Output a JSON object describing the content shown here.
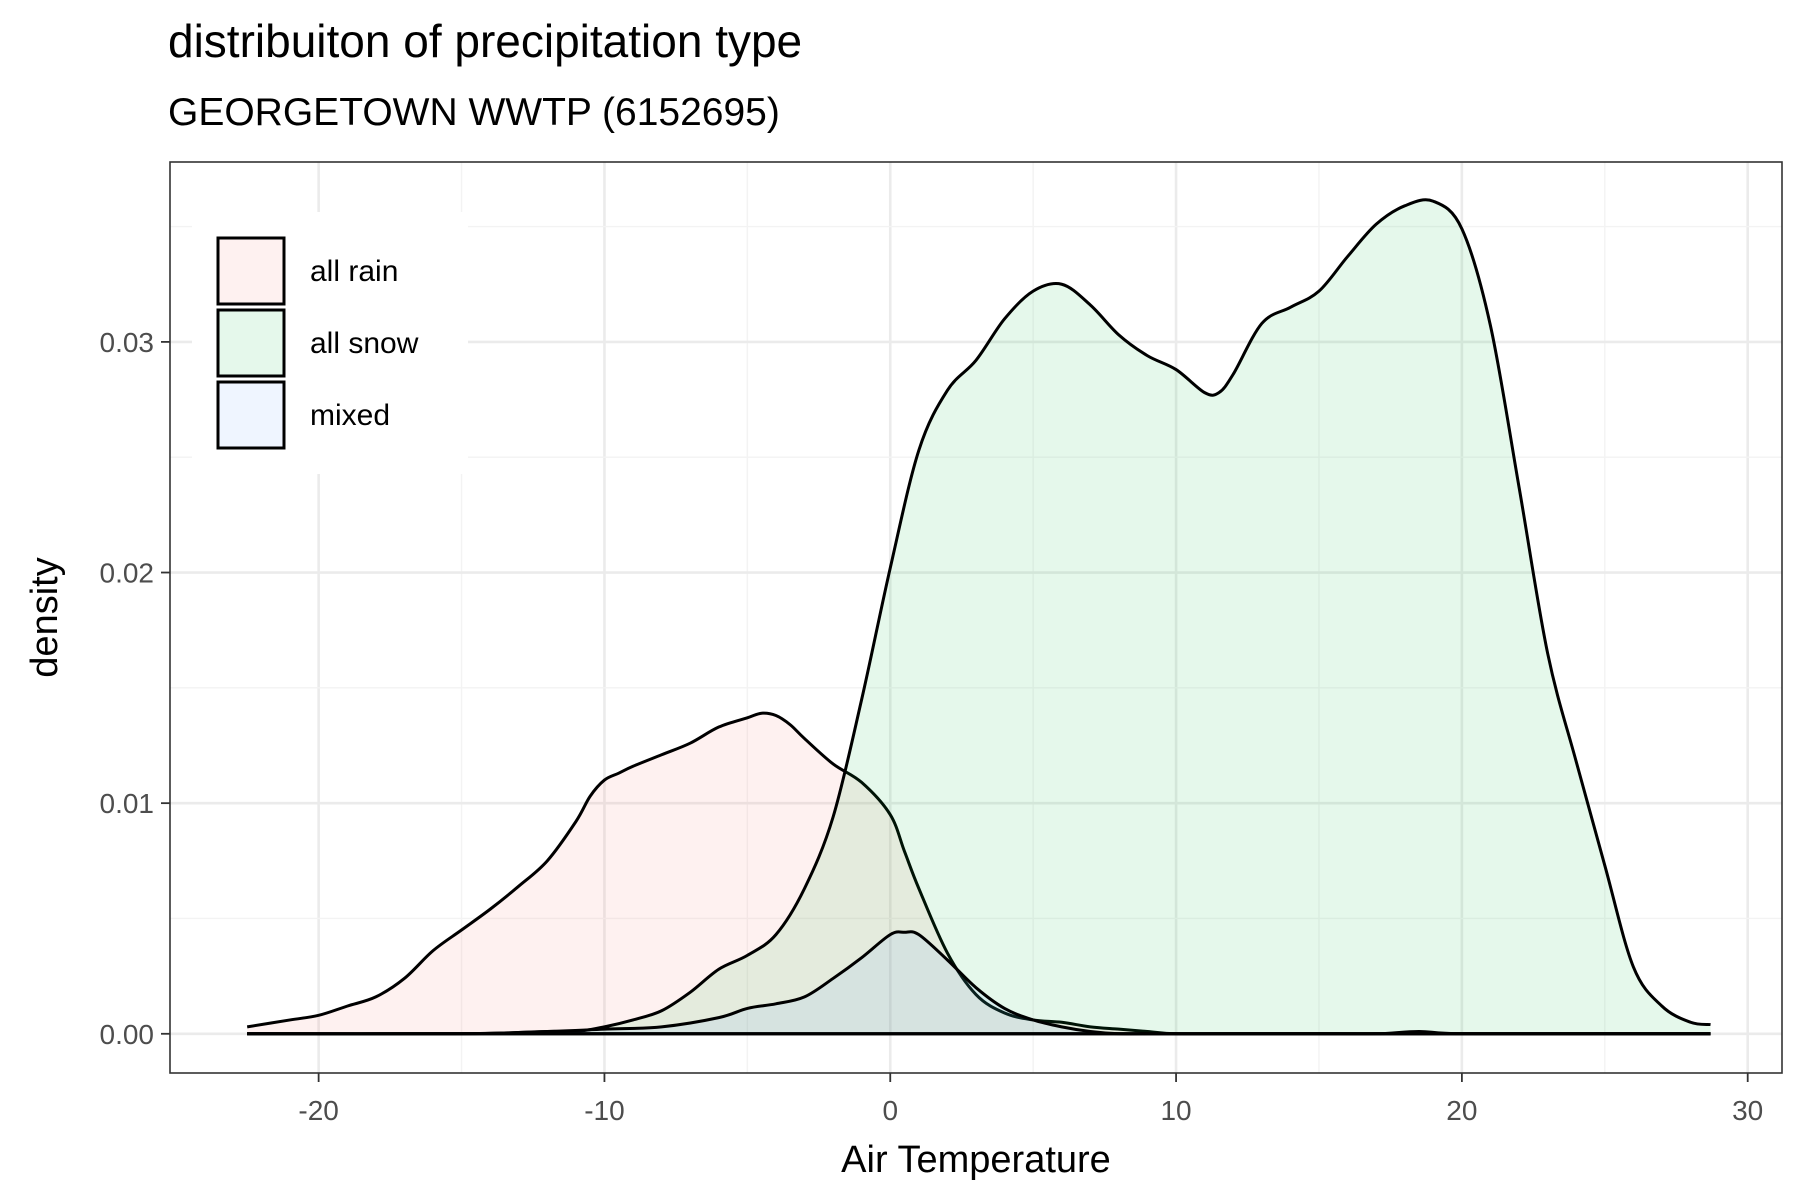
{
  "chart_data": {
    "type": "area",
    "title": "distribuiton of precipitation type",
    "subtitle": "GEORGETOWN WWTP (6152695)",
    "xlabel": "Air Temperature",
    "ylabel": "density",
    "xlim": [
      -25.2,
      31.2
    ],
    "ylim": [
      -0.0017,
      0.0378
    ],
    "x_ticks": [
      -20,
      -10,
      0,
      10,
      20,
      30
    ],
    "x_tick_labels": [
      "-20",
      "-10",
      "0",
      "10",
      "20",
      "30"
    ],
    "y_ticks": [
      0,
      0.01,
      0.02,
      0.03
    ],
    "y_tick_labels": [
      "0.00",
      "0.01",
      "0.02",
      "0.03"
    ],
    "grid": true,
    "legend_position": "top-left",
    "series": [
      {
        "name": "all rain",
        "color": "#F8766D",
        "x": [
          -22.5,
          -21,
          -20,
          -19,
          -18,
          -17,
          -16,
          -15,
          -14,
          -13,
          -12,
          -11,
          -10.5,
          -10,
          -9.5,
          -9,
          -8,
          -7,
          -6,
          -5,
          -4.5,
          -4,
          -3.5,
          -3,
          -2,
          -1,
          0,
          0.5,
          1,
          2,
          3,
          4,
          5,
          6,
          7,
          8,
          9,
          10,
          12,
          15,
          20,
          25,
          28.7
        ],
        "y": [
          0.0003,
          0.0006,
          0.0008,
          0.0012,
          0.0016,
          0.0024,
          0.0036,
          0.0045,
          0.0054,
          0.0064,
          0.0075,
          0.0092,
          0.0103,
          0.011,
          0.0113,
          0.0116,
          0.0121,
          0.0126,
          0.0133,
          0.0137,
          0.0139,
          0.0138,
          0.0134,
          0.0128,
          0.0117,
          0.0109,
          0.0095,
          0.0079,
          0.0063,
          0.0035,
          0.0017,
          0.0009,
          0.0006,
          0.0005,
          0.0003,
          0.0002,
          0.0001,
          0.0,
          0.0,
          0.0,
          0.0,
          0.0,
          0.0
        ]
      },
      {
        "name": "all snow",
        "color": "#00BA38",
        "x": [
          -22.5,
          -15,
          -12,
          -11,
          -10,
          -9,
          -8,
          -7,
          -6,
          -5,
          -4,
          -3,
          -2,
          -1,
          0,
          1,
          2,
          3,
          4,
          5,
          6,
          7,
          8,
          9,
          10,
          11,
          11.5,
          12,
          13,
          14,
          15,
          16,
          17,
          18,
          19,
          20,
          21,
          22,
          23,
          24,
          25,
          26,
          27,
          28,
          28.7
        ],
        "y": [
          0.0,
          0.0,
          0.0001,
          0.0001,
          0.0003,
          0.0006,
          0.001,
          0.0018,
          0.0028,
          0.0034,
          0.0043,
          0.0063,
          0.0094,
          0.0145,
          0.0202,
          0.0253,
          0.0279,
          0.0292,
          0.031,
          0.0322,
          0.0325,
          0.0316,
          0.0303,
          0.0294,
          0.0288,
          0.0278,
          0.0278,
          0.0286,
          0.0308,
          0.0315,
          0.0322,
          0.0337,
          0.0351,
          0.0359,
          0.0361,
          0.0349,
          0.0307,
          0.0237,
          0.0165,
          0.0118,
          0.0073,
          0.0029,
          0.0012,
          0.0005,
          0.0004
        ]
      },
      {
        "name": "mixed",
        "color": "#619CFF",
        "x": [
          -22.5,
          -15,
          -12,
          -10,
          -8,
          -6,
          -5,
          -4,
          -3,
          -2,
          -1,
          0,
          0.5,
          1,
          2,
          3,
          4,
          5,
          6,
          7,
          8,
          9,
          10,
          12,
          15,
          17,
          18.5,
          20,
          25,
          28.7
        ],
        "y": [
          0.0,
          0.0,
          0.0001,
          0.0002,
          0.0003,
          0.0007,
          0.0011,
          0.0013,
          0.0016,
          0.0024,
          0.0033,
          0.0043,
          0.0044,
          0.0043,
          0.0032,
          0.002,
          0.0011,
          0.0006,
          0.0003,
          0.0001,
          0.0,
          0.0,
          0.0,
          0.0,
          0.0,
          0.0,
          0.0001,
          0.0,
          0.0,
          0.0
        ]
      }
    ]
  }
}
